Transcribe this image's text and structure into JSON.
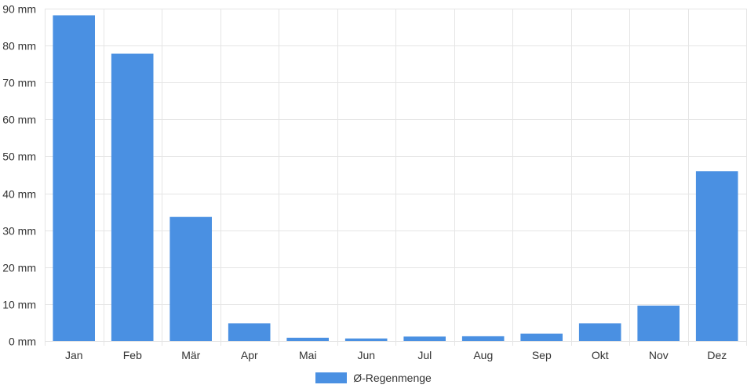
{
  "chart_data": {
    "type": "bar",
    "categories": [
      "Jan",
      "Feb",
      "Mär",
      "Apr",
      "Mai",
      "Jun",
      "Jul",
      "Aug",
      "Sep",
      "Okt",
      "Nov",
      "Dez"
    ],
    "series": [
      {
        "name": "Ø-Regenmenge",
        "values": [
          88.2,
          77.8,
          33.6,
          4.8,
          0.9,
          0.7,
          1.2,
          1.3,
          2.0,
          4.8,
          9.6,
          46.0
        ]
      }
    ],
    "unit": "mm",
    "ylim": [
      0,
      90
    ],
    "yticks": [
      0,
      10,
      20,
      30,
      40,
      50,
      60,
      70,
      80,
      90
    ],
    "ytick_labels": [
      "0 mm",
      "10 mm",
      "20 mm",
      "30 mm",
      "40 mm",
      "50 mm",
      "60 mm",
      "70 mm",
      "80 mm",
      "90 mm"
    ],
    "grid": true,
    "legend_position": "bottom-center",
    "bar_color": "#4a90e2",
    "grid_color": "#e5e5e5"
  }
}
